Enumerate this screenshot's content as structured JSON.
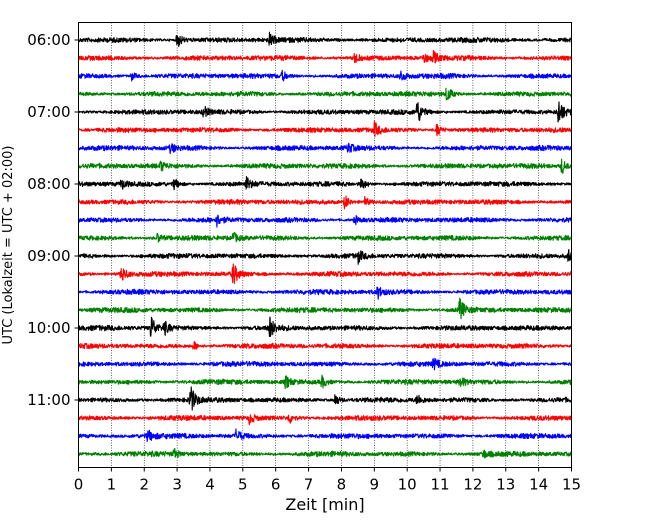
{
  "chart_data": {
    "type": "line",
    "xlabel": "Zeit  [min]",
    "ylabel": "UTC (Lokalzeit = UTC + 02:00)",
    "xlim": [
      0,
      15
    ],
    "x_ticks": [
      0,
      1,
      2,
      3,
      4,
      5,
      6,
      7,
      8,
      9,
      10,
      11,
      12,
      13,
      14,
      15
    ],
    "x_grid": "dotted",
    "trace_interval_minutes": 15,
    "first_trace_time": "06:00",
    "y_tick_labels": [
      "06:00",
      "07:00",
      "08:00",
      "09:00",
      "10:00",
      "11:00"
    ],
    "colors": [
      "#000000",
      "#ff0000",
      "#0000ff",
      "#008000"
    ],
    "traces": [
      {
        "time": "06:00",
        "color": "#000000",
        "events": [
          [
            3.0,
            1.0
          ],
          [
            5.8,
            0.7
          ]
        ]
      },
      {
        "time": "06:15",
        "color": "#ff0000",
        "events": [
          [
            8.4,
            0.6
          ],
          [
            10.5,
            0.6
          ],
          [
            10.8,
            0.6
          ]
        ]
      },
      {
        "time": "06:30",
        "color": "#0000ff",
        "events": [
          [
            1.6,
            0.5
          ],
          [
            6.2,
            0.5
          ],
          [
            9.8,
            0.6
          ]
        ]
      },
      {
        "time": "06:45",
        "color": "#008000",
        "events": [
          [
            11.2,
            0.9
          ]
        ]
      },
      {
        "time": "07:00",
        "color": "#000000",
        "events": [
          [
            3.8,
            0.6
          ],
          [
            10.3,
            1.4
          ],
          [
            14.6,
            1.6
          ]
        ]
      },
      {
        "time": "07:15",
        "color": "#ff0000",
        "events": [
          [
            9.0,
            0.8
          ],
          [
            10.9,
            0.7
          ]
        ]
      },
      {
        "time": "07:30",
        "color": "#0000ff",
        "events": [
          [
            2.8,
            0.5
          ],
          [
            8.2,
            0.5
          ]
        ]
      },
      {
        "time": "07:45",
        "color": "#008000",
        "events": [
          [
            2.5,
            0.5
          ],
          [
            14.7,
            0.9
          ]
        ]
      },
      {
        "time": "08:00",
        "color": "#000000",
        "events": [
          [
            1.3,
            0.6
          ],
          [
            2.9,
            0.6
          ],
          [
            5.1,
            0.7
          ],
          [
            8.6,
            0.7
          ]
        ]
      },
      {
        "time": "08:15",
        "color": "#ff0000",
        "events": [
          [
            8.1,
            0.8
          ],
          [
            8.7,
            0.6
          ]
        ]
      },
      {
        "time": "08:30",
        "color": "#0000ff",
        "events": [
          [
            4.2,
            0.6
          ],
          [
            8.4,
            0.5
          ]
        ]
      },
      {
        "time": "08:45",
        "color": "#008000",
        "events": [
          [
            2.4,
            0.5
          ],
          [
            4.7,
            0.6
          ]
        ]
      },
      {
        "time": "09:00",
        "color": "#000000",
        "events": [
          [
            8.5,
            0.7
          ],
          [
            14.9,
            0.8
          ]
        ]
      },
      {
        "time": "09:15",
        "color": "#ff0000",
        "events": [
          [
            1.3,
            1.0
          ],
          [
            4.7,
            1.3
          ]
        ]
      },
      {
        "time": "09:30",
        "color": "#0000ff",
        "events": [
          [
            9.1,
            0.7
          ]
        ]
      },
      {
        "time": "09:45",
        "color": "#008000",
        "events": [
          [
            11.6,
            1.4
          ]
        ]
      },
      {
        "time": "10:00",
        "color": "#000000",
        "events": [
          [
            2.2,
            1.5
          ],
          [
            2.6,
            0.8
          ],
          [
            5.8,
            1.4
          ]
        ]
      },
      {
        "time": "10:15",
        "color": "#ff0000",
        "events": [
          [
            3.5,
            0.5
          ]
        ]
      },
      {
        "time": "10:30",
        "color": "#0000ff",
        "events": [
          [
            10.8,
            0.6
          ]
        ]
      },
      {
        "time": "10:45",
        "color": "#008000",
        "events": [
          [
            6.3,
            0.7
          ],
          [
            7.4,
            0.7
          ],
          [
            11.6,
            0.6
          ]
        ]
      },
      {
        "time": "11:00",
        "color": "#000000",
        "events": [
          [
            3.4,
            1.6
          ],
          [
            7.8,
            0.7
          ],
          [
            10.3,
            0.6
          ]
        ]
      },
      {
        "time": "11:15",
        "color": "#ff0000",
        "events": [
          [
            5.2,
            0.6
          ],
          [
            6.4,
            0.6
          ]
        ]
      },
      {
        "time": "11:30",
        "color": "#0000ff",
        "events": [
          [
            2.1,
            0.6
          ],
          [
            4.8,
            0.8
          ]
        ]
      },
      {
        "time": "11:45",
        "color": "#008000",
        "events": [
          [
            2.9,
            0.5
          ],
          [
            12.3,
            0.5
          ]
        ]
      }
    ]
  }
}
